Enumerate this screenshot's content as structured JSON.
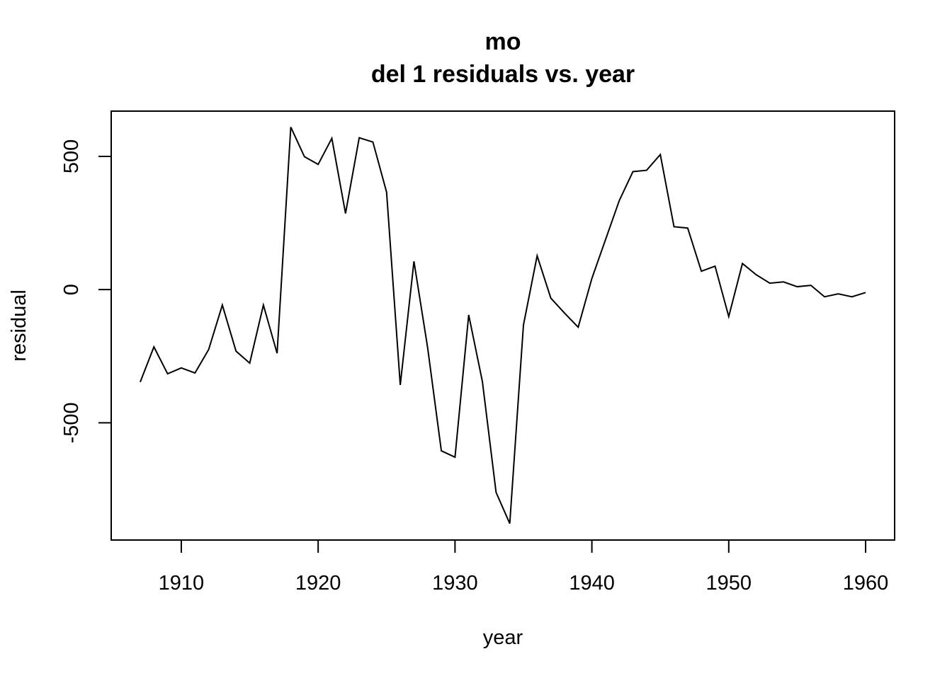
{
  "chart_data": {
    "type": "line",
    "title": "mo",
    "subtitle": "del 1 residuals vs. year",
    "xlabel": "year",
    "ylabel": "residual",
    "color": "#000000",
    "x": [
      1907,
      1908,
      1909,
      1910,
      1911,
      1912,
      1913,
      1914,
      1915,
      1916,
      1917,
      1918,
      1919,
      1920,
      1921,
      1922,
      1923,
      1924,
      1925,
      1926,
      1927,
      1928,
      1929,
      1930,
      1931,
      1932,
      1933,
      1934,
      1935,
      1936,
      1937,
      1938,
      1939,
      1940,
      1941,
      1942,
      1943,
      1944,
      1945,
      1946,
      1947,
      1948,
      1949,
      1950,
      1951,
      1952,
      1953,
      1954,
      1955,
      1956,
      1957,
      1958,
      1959,
      1960
    ],
    "values": [
      -347,
      -215,
      -316,
      -294,
      -313,
      -225,
      -58,
      -231,
      -276,
      -58,
      -239,
      610,
      499,
      470,
      568,
      286,
      570,
      554,
      366,
      -358,
      106,
      -218,
      -605,
      -629,
      -95,
      -345,
      -761,
      -878,
      -133,
      127,
      -32,
      -88,
      -141,
      42,
      188,
      334,
      443,
      448,
      507,
      236,
      231,
      69,
      88,
      -101,
      98,
      56,
      24,
      29,
      11,
      16,
      -27,
      -16,
      -27,
      -11
    ],
    "xlim": [
      1904.88,
      1962.12
    ],
    "ylim": [
      -940,
      670
    ],
    "xticks": [
      1910,
      1920,
      1930,
      1940,
      1950,
      1960
    ],
    "yticks": [
      -500,
      0,
      500
    ]
  }
}
